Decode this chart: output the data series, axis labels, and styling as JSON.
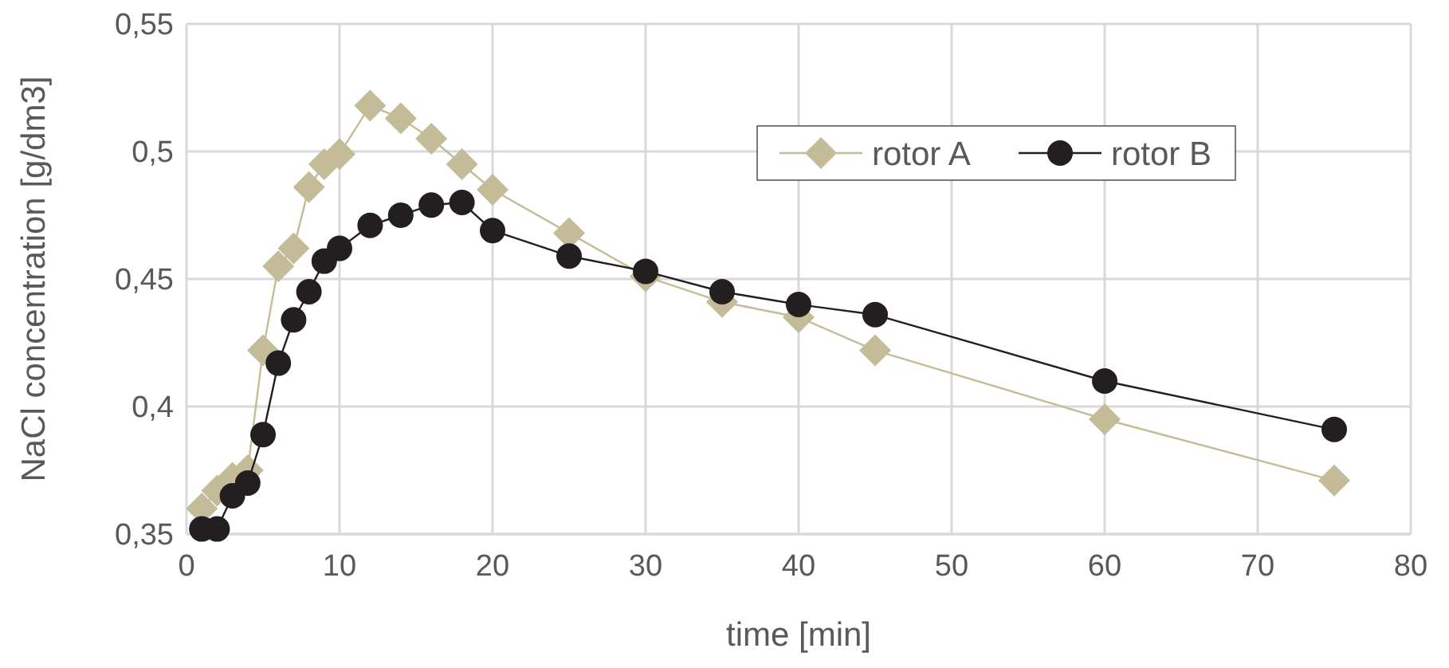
{
  "chart_data": {
    "type": "line",
    "xlabel": "time [min]",
    "ylabel": "NaCl concentration [g/dm3]",
    "xlim": [
      0,
      80
    ],
    "xticks": [
      0,
      10,
      20,
      30,
      40,
      50,
      60,
      70,
      80
    ],
    "ylim": [
      0.35,
      0.55
    ],
    "yticks": [
      {
        "value": 0.35,
        "label": "0,35"
      },
      {
        "value": 0.4,
        "label": "0,4"
      },
      {
        "value": 0.45,
        "label": "0,45"
      },
      {
        "value": 0.5,
        "label": "0,5"
      },
      {
        "value": 0.55,
        "label": "0,55"
      }
    ],
    "grid": true,
    "legend": "top right",
    "series": [
      {
        "name": "rotor A",
        "color": "#c4bc98",
        "marker": "diamond",
        "x": [
          1,
          2,
          3,
          4,
          5,
          6,
          7,
          8,
          9,
          10,
          12,
          14,
          16,
          18,
          20,
          25,
          30,
          35,
          40,
          45,
          60,
          75
        ],
        "values": [
          0.36,
          0.367,
          0.372,
          0.375,
          0.422,
          0.455,
          0.462,
          0.486,
          0.495,
          0.499,
          0.518,
          0.513,
          0.505,
          0.495,
          0.485,
          0.468,
          0.451,
          0.441,
          0.435,
          0.422,
          0.395,
          0.371
        ]
      },
      {
        "name": "rotor B",
        "color": "#231f20",
        "marker": "circle",
        "x": [
          1,
          2,
          3,
          4,
          5,
          6,
          7,
          8,
          9,
          10,
          12,
          14,
          16,
          18,
          20,
          25,
          30,
          35,
          40,
          45,
          60,
          75
        ],
        "values": [
          0.352,
          0.352,
          0.365,
          0.37,
          0.389,
          0.417,
          0.434,
          0.445,
          0.457,
          0.462,
          0.471,
          0.475,
          0.479,
          0.48,
          0.469,
          0.459,
          0.453,
          0.445,
          0.44,
          0.436,
          0.41,
          0.391
        ]
      }
    ]
  }
}
